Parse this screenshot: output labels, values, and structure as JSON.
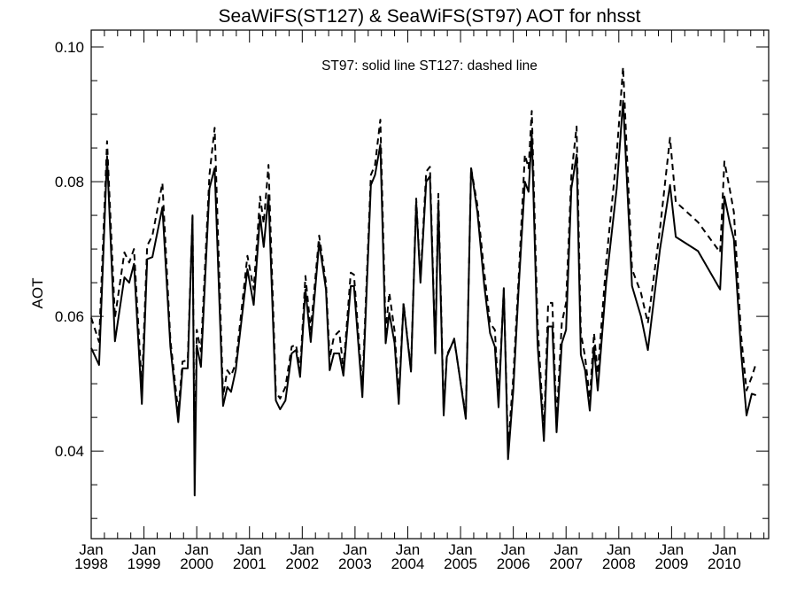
{
  "chart_data": {
    "type": "line",
    "title": "SeaWiFS(ST127) & SeaWiFS(ST97)  AOT for nhsst",
    "annotation": "ST97: solid line   ST127: dashed line",
    "ylabel": "AOT",
    "xlabel": "",
    "xlim": [
      1998.0,
      2010.84
    ],
    "ylim": [
      0.027,
      0.1025
    ],
    "yticks": [
      0.04,
      0.06,
      0.08,
      0.1
    ],
    "ytick_labels": [
      "0.04",
      "0.06",
      "0.08",
      "0.10"
    ],
    "xticks": [
      {
        "value": 1998,
        "month": "Jan",
        "year": "1998"
      },
      {
        "value": 1999,
        "month": "Jan",
        "year": "1999"
      },
      {
        "value": 2000,
        "month": "Jan",
        "year": "2000"
      },
      {
        "value": 2001,
        "month": "Jan",
        "year": "2001"
      },
      {
        "value": 2002,
        "month": "Jan",
        "year": "2002"
      },
      {
        "value": 2003,
        "month": "Jan",
        "year": "2003"
      },
      {
        "value": 2004,
        "month": "Jan",
        "year": "2004"
      },
      {
        "value": 2005,
        "month": "Jan",
        "year": "2005"
      },
      {
        "value": 2006,
        "month": "Jan",
        "year": "2006"
      },
      {
        "value": 2007,
        "month": "Jan",
        "year": "2007"
      },
      {
        "value": 2008,
        "month": "Jan",
        "year": "2008"
      },
      {
        "value": 2009,
        "month": "Jan",
        "year": "2009"
      },
      {
        "value": 2010,
        "month": "Jan",
        "year": "2010"
      }
    ],
    "grid": false,
    "series": [
      {
        "style": "solid",
        "points": [
          [
            1998.0,
            0.0553
          ],
          [
            1998.15,
            0.0528
          ],
          [
            1998.3,
            0.0838
          ],
          [
            1998.45,
            0.0563
          ],
          [
            1998.63,
            0.0658
          ],
          [
            1998.72,
            0.065
          ],
          [
            1998.81,
            0.0678
          ],
          [
            1998.96,
            0.047
          ],
          [
            1999.06,
            0.0685
          ],
          [
            1999.16,
            0.0688
          ],
          [
            1999.35,
            0.0762
          ],
          [
            1999.5,
            0.0555
          ],
          [
            1999.65,
            0.0443
          ],
          [
            1999.73,
            0.0523
          ],
          [
            1999.83,
            0.0523
          ],
          [
            1999.92,
            0.075
          ],
          [
            1999.96,
            0.0334
          ],
          [
            2000.0,
            0.0557
          ],
          [
            2000.08,
            0.0525
          ],
          [
            2000.24,
            0.079
          ],
          [
            2000.34,
            0.082
          ],
          [
            2000.5,
            0.0467
          ],
          [
            2000.58,
            0.0495
          ],
          [
            2000.65,
            0.0488
          ],
          [
            2000.74,
            0.052
          ],
          [
            2000.96,
            0.067
          ],
          [
            2001.08,
            0.0617
          ],
          [
            2001.2,
            0.075
          ],
          [
            2001.27,
            0.0703
          ],
          [
            2001.36,
            0.078
          ],
          [
            2001.5,
            0.0475
          ],
          [
            2001.58,
            0.0462
          ],
          [
            2001.68,
            0.0475
          ],
          [
            2001.8,
            0.0545
          ],
          [
            2001.88,
            0.055
          ],
          [
            2001.96,
            0.051
          ],
          [
            2002.06,
            0.064
          ],
          [
            2002.16,
            0.0562
          ],
          [
            2002.32,
            0.071
          ],
          [
            2002.45,
            0.064
          ],
          [
            2002.52,
            0.052
          ],
          [
            2002.6,
            0.0545
          ],
          [
            2002.7,
            0.0545
          ],
          [
            2002.78,
            0.0512
          ],
          [
            2002.92,
            0.0645
          ],
          [
            2002.98,
            0.0645
          ],
          [
            2003.14,
            0.048
          ],
          [
            2003.3,
            0.0795
          ],
          [
            2003.38,
            0.081
          ],
          [
            2003.48,
            0.0855
          ],
          [
            2003.58,
            0.056
          ],
          [
            2003.65,
            0.0605
          ],
          [
            2003.75,
            0.056
          ],
          [
            2003.83,
            0.047
          ],
          [
            2003.92,
            0.0618
          ],
          [
            2004.06,
            0.0518
          ],
          [
            2004.16,
            0.077
          ],
          [
            2004.24,
            0.065
          ],
          [
            2004.35,
            0.08
          ],
          [
            2004.42,
            0.0808
          ],
          [
            2004.52,
            0.0545
          ],
          [
            2004.58,
            0.0768
          ],
          [
            2004.68,
            0.0453
          ],
          [
            2004.74,
            0.054
          ],
          [
            2004.88,
            0.0567
          ],
          [
            2005.1,
            0.0448
          ],
          [
            2005.2,
            0.082
          ],
          [
            2005.32,
            0.0755
          ],
          [
            2005.45,
            0.0645
          ],
          [
            2005.56,
            0.0575
          ],
          [
            2005.65,
            0.0555
          ],
          [
            2005.72,
            0.0465
          ],
          [
            2005.82,
            0.0642
          ],
          [
            2005.9,
            0.0388
          ],
          [
            2006.0,
            0.049
          ],
          [
            2006.1,
            0.064
          ],
          [
            2006.22,
            0.08
          ],
          [
            2006.29,
            0.0785
          ],
          [
            2006.35,
            0.087
          ],
          [
            2006.46,
            0.056
          ],
          [
            2006.58,
            0.0415
          ],
          [
            2006.66,
            0.0585
          ],
          [
            2006.74,
            0.0585
          ],
          [
            2006.82,
            0.0428
          ],
          [
            2006.92,
            0.056
          ],
          [
            2007.0,
            0.058
          ],
          [
            2007.1,
            0.079
          ],
          [
            2007.2,
            0.084
          ],
          [
            2007.28,
            0.0543
          ],
          [
            2007.36,
            0.052
          ],
          [
            2007.45,
            0.046
          ],
          [
            2007.53,
            0.0555
          ],
          [
            2007.6,
            0.049
          ],
          [
            2007.76,
            0.065
          ],
          [
            2007.96,
            0.079
          ],
          [
            2008.08,
            0.092
          ],
          [
            2008.25,
            0.0645
          ],
          [
            2008.42,
            0.06
          ],
          [
            2008.55,
            0.055
          ],
          [
            2008.78,
            0.07
          ],
          [
            2008.97,
            0.0795
          ],
          [
            2009.08,
            0.0718
          ],
          [
            2009.5,
            0.0697
          ],
          [
            2009.92,
            0.064
          ],
          [
            2010.0,
            0.0778
          ],
          [
            2010.1,
            0.074
          ],
          [
            2010.18,
            0.0715
          ],
          [
            2010.32,
            0.0545
          ],
          [
            2010.42,
            0.0453
          ],
          [
            2010.52,
            0.0485
          ],
          [
            2010.6,
            0.0483
          ]
        ]
      },
      {
        "style": "dashed",
        "points": [
          [
            1998.0,
            0.0598
          ],
          [
            1998.15,
            0.0562
          ],
          [
            1998.3,
            0.086
          ],
          [
            1998.45,
            0.0598
          ],
          [
            1998.63,
            0.0695
          ],
          [
            1998.72,
            0.068
          ],
          [
            1998.81,
            0.07
          ],
          [
            1998.96,
            0.0495
          ],
          [
            1999.06,
            0.0705
          ],
          [
            1999.16,
            0.072
          ],
          [
            1999.35,
            0.0798
          ],
          [
            1999.5,
            0.0565
          ],
          [
            1999.65,
            0.0458
          ],
          [
            1999.73,
            0.0533
          ],
          [
            1999.83,
            0.0535
          ],
          [
            1999.92,
            0.0748
          ],
          [
            1999.96,
            0.038
          ],
          [
            2000.0,
            0.058
          ],
          [
            2000.08,
            0.0548
          ],
          [
            2000.24,
            0.081
          ],
          [
            2000.34,
            0.088
          ],
          [
            2000.5,
            0.0482
          ],
          [
            2000.58,
            0.052
          ],
          [
            2000.65,
            0.0512
          ],
          [
            2000.74,
            0.053
          ],
          [
            2000.96,
            0.069
          ],
          [
            2001.08,
            0.064
          ],
          [
            2001.2,
            0.0778
          ],
          [
            2001.27,
            0.0738
          ],
          [
            2001.36,
            0.0825
          ],
          [
            2001.5,
            0.0488
          ],
          [
            2001.58,
            0.0478
          ],
          [
            2001.68,
            0.0495
          ],
          [
            2001.8,
            0.0555
          ],
          [
            2001.88,
            0.0558
          ],
          [
            2001.96,
            0.052
          ],
          [
            2002.06,
            0.066
          ],
          [
            2002.16,
            0.058
          ],
          [
            2002.32,
            0.072
          ],
          [
            2002.45,
            0.065
          ],
          [
            2002.52,
            0.0538
          ],
          [
            2002.6,
            0.057
          ],
          [
            2002.7,
            0.0578
          ],
          [
            2002.78,
            0.0522
          ],
          [
            2002.92,
            0.0665
          ],
          [
            2002.98,
            0.0662
          ],
          [
            2003.14,
            0.0495
          ],
          [
            2003.3,
            0.081
          ],
          [
            2003.38,
            0.0825
          ],
          [
            2003.48,
            0.0892
          ],
          [
            2003.58,
            0.0578
          ],
          [
            2003.65,
            0.0635
          ],
          [
            2003.75,
            0.0578
          ],
          [
            2003.83,
            0.048
          ],
          [
            2003.92,
            0.062
          ],
          [
            2004.06,
            0.052
          ],
          [
            2004.16,
            0.0775
          ],
          [
            2004.24,
            0.0655
          ],
          [
            2004.35,
            0.0815
          ],
          [
            2004.42,
            0.0822
          ],
          [
            2004.52,
            0.055
          ],
          [
            2004.58,
            0.0782
          ],
          [
            2004.68,
            0.0462
          ],
          [
            2004.74,
            0.0543
          ],
          [
            2004.88,
            0.0565
          ],
          [
            2005.1,
            0.0452
          ],
          [
            2005.2,
            0.082
          ],
          [
            2005.32,
            0.0765
          ],
          [
            2005.45,
            0.0665
          ],
          [
            2005.56,
            0.059
          ],
          [
            2005.65,
            0.058
          ],
          [
            2005.72,
            0.0478
          ],
          [
            2005.82,
            0.064
          ],
          [
            2005.9,
            0.0405
          ],
          [
            2006.0,
            0.051
          ],
          [
            2006.1,
            0.0655
          ],
          [
            2006.22,
            0.084
          ],
          [
            2006.29,
            0.082
          ],
          [
            2006.35,
            0.0905
          ],
          [
            2006.46,
            0.059
          ],
          [
            2006.58,
            0.0428
          ],
          [
            2006.66,
            0.062
          ],
          [
            2006.74,
            0.062
          ],
          [
            2006.82,
            0.0445
          ],
          [
            2006.92,
            0.059
          ],
          [
            2007.0,
            0.062
          ],
          [
            2007.1,
            0.081
          ],
          [
            2007.2,
            0.0882
          ],
          [
            2007.28,
            0.0575
          ],
          [
            2007.36,
            0.054
          ],
          [
            2007.45,
            0.0478
          ],
          [
            2007.53,
            0.0575
          ],
          [
            2007.6,
            0.0515
          ],
          [
            2007.76,
            0.068
          ],
          [
            2007.96,
            0.084
          ],
          [
            2008.08,
            0.097
          ],
          [
            2008.25,
            0.067
          ],
          [
            2008.42,
            0.0635
          ],
          [
            2008.55,
            0.059
          ],
          [
            2008.78,
            0.073
          ],
          [
            2008.97,
            0.0865
          ],
          [
            2009.08,
            0.077
          ],
          [
            2009.5,
            0.074
          ],
          [
            2009.92,
            0.0695
          ],
          [
            2010.0,
            0.083
          ],
          [
            2010.1,
            0.079
          ],
          [
            2010.18,
            0.0755
          ],
          [
            2010.32,
            0.057
          ],
          [
            2010.42,
            0.049
          ],
          [
            2010.52,
            0.051
          ],
          [
            2010.6,
            0.053
          ]
        ]
      }
    ]
  }
}
